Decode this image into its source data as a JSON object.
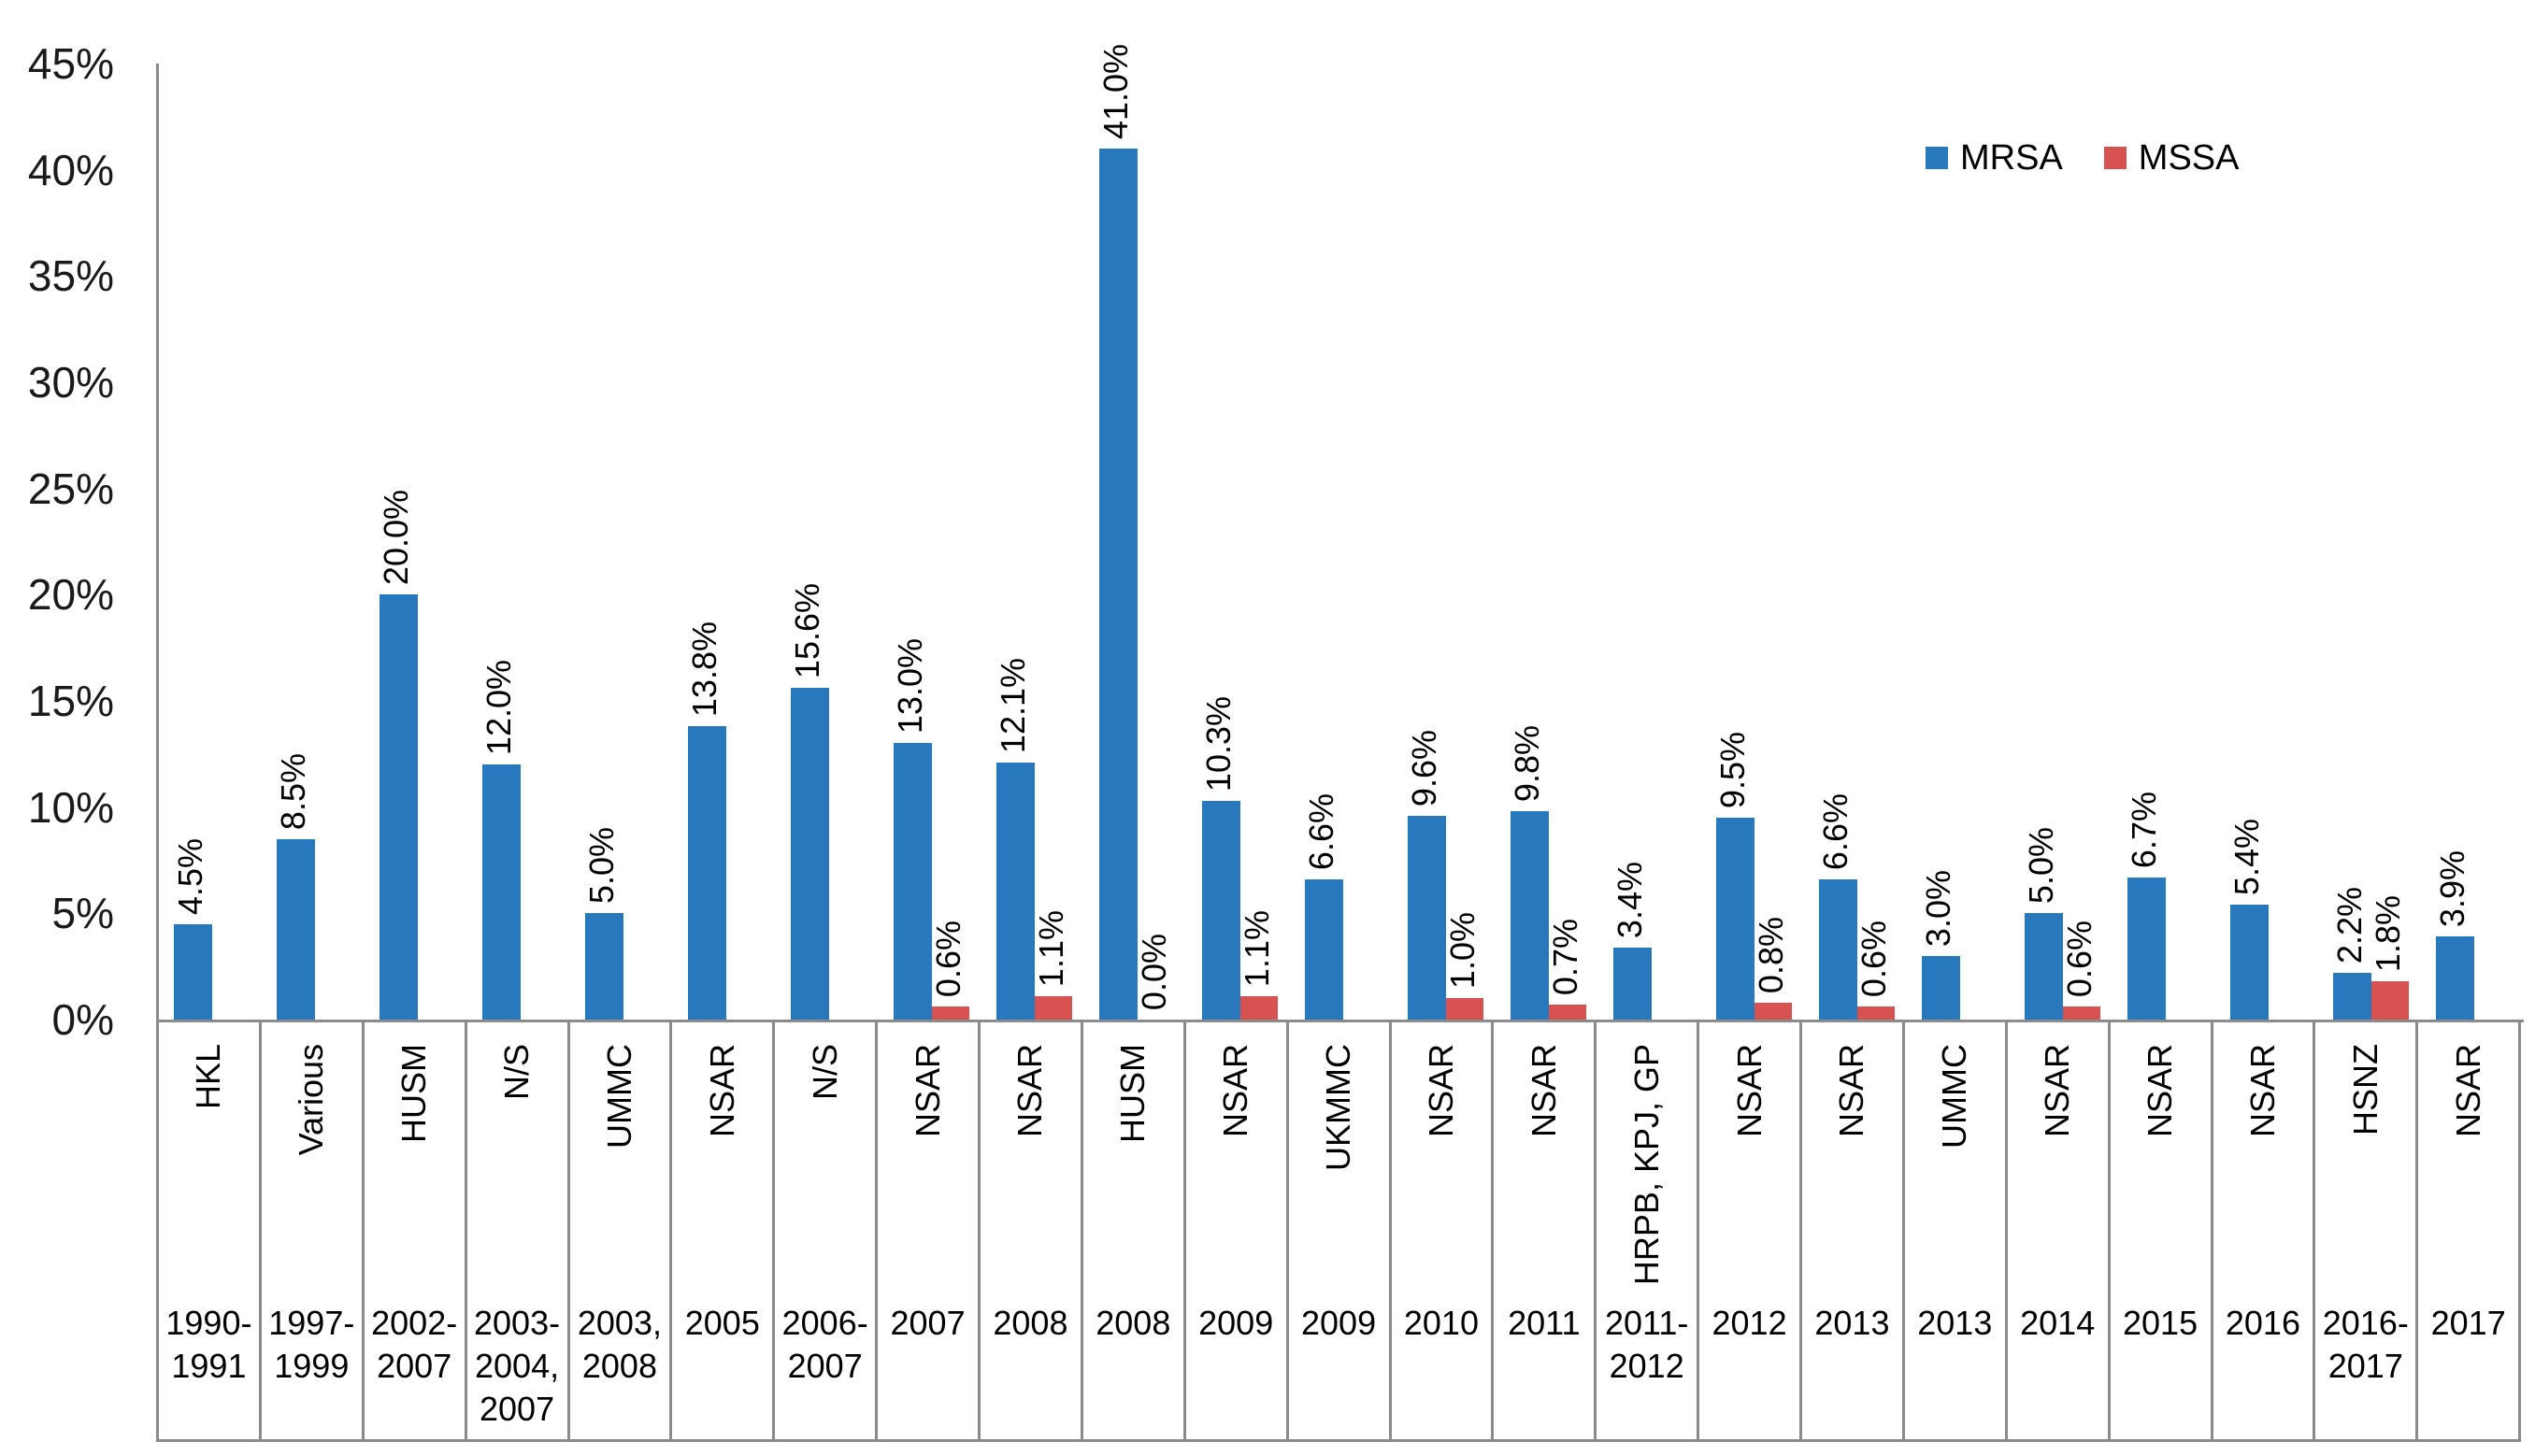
{
  "chart_data": {
    "type": "bar",
    "title": "",
    "xlabel": "",
    "ylabel": "",
    "ylim": [
      0,
      45
    ],
    "ytick_step": 5,
    "ytick_suffix": "%",
    "gridlines": false,
    "legend_position": "top-right",
    "data_label_format": "one-decimal-percent",
    "data_label_rotation": -90,
    "categories": [
      {
        "site": "HKL",
        "years": "1990-1991"
      },
      {
        "site": "Various",
        "years": "1997-1999"
      },
      {
        "site": "HUSM",
        "years": "2002-2007"
      },
      {
        "site": "N/S",
        "years": "2003-2004, 2007"
      },
      {
        "site": "UMMC",
        "years": "2003, 2008"
      },
      {
        "site": "NSAR",
        "years": "2005"
      },
      {
        "site": "N/S",
        "years": "2006-2007"
      },
      {
        "site": "NSAR",
        "years": "2007"
      },
      {
        "site": "NSAR",
        "years": "2008"
      },
      {
        "site": "HUSM",
        "years": "2008"
      },
      {
        "site": "NSAR",
        "years": "2009"
      },
      {
        "site": "UKMMC",
        "years": "2009"
      },
      {
        "site": "NSAR",
        "years": "2010"
      },
      {
        "site": "NSAR",
        "years": "2011"
      },
      {
        "site": "HRPB, KPJ, GP",
        "years": "2011-2012"
      },
      {
        "site": "NSAR",
        "years": "2012"
      },
      {
        "site": "NSAR",
        "years": "2013"
      },
      {
        "site": "UMMC",
        "years": "2013"
      },
      {
        "site": "NSAR",
        "years": "2014"
      },
      {
        "site": "NSAR",
        "years": "2015"
      },
      {
        "site": "NSAR",
        "years": "2016"
      },
      {
        "site": "HSNZ",
        "years": "2016-2017"
      },
      {
        "site": "NSAR",
        "years": "2017"
      }
    ],
    "series": [
      {
        "name": "MRSA",
        "color": "#2878BE",
        "values": [
          4.5,
          8.5,
          20.0,
          12.0,
          5.0,
          13.8,
          15.6,
          13.0,
          12.1,
          41.0,
          10.3,
          6.6,
          9.6,
          9.8,
          3.4,
          9.5,
          6.6,
          3.0,
          5.0,
          6.7,
          5.4,
          2.2,
          3.9
        ]
      },
      {
        "name": "MSSA",
        "color": "#D85151",
        "values": [
          null,
          null,
          null,
          null,
          null,
          null,
          null,
          0.6,
          1.1,
          0.0,
          1.1,
          null,
          1.0,
          0.7,
          null,
          0.8,
          0.6,
          null,
          0.6,
          null,
          null,
          1.8,
          null
        ]
      }
    ]
  },
  "colors": {
    "mrsa_blue": "#2878BE",
    "mssa_red": "#D85151",
    "axis_gray": "#8b8b8b",
    "text_black": "#000000",
    "background": "#ffffff"
  }
}
